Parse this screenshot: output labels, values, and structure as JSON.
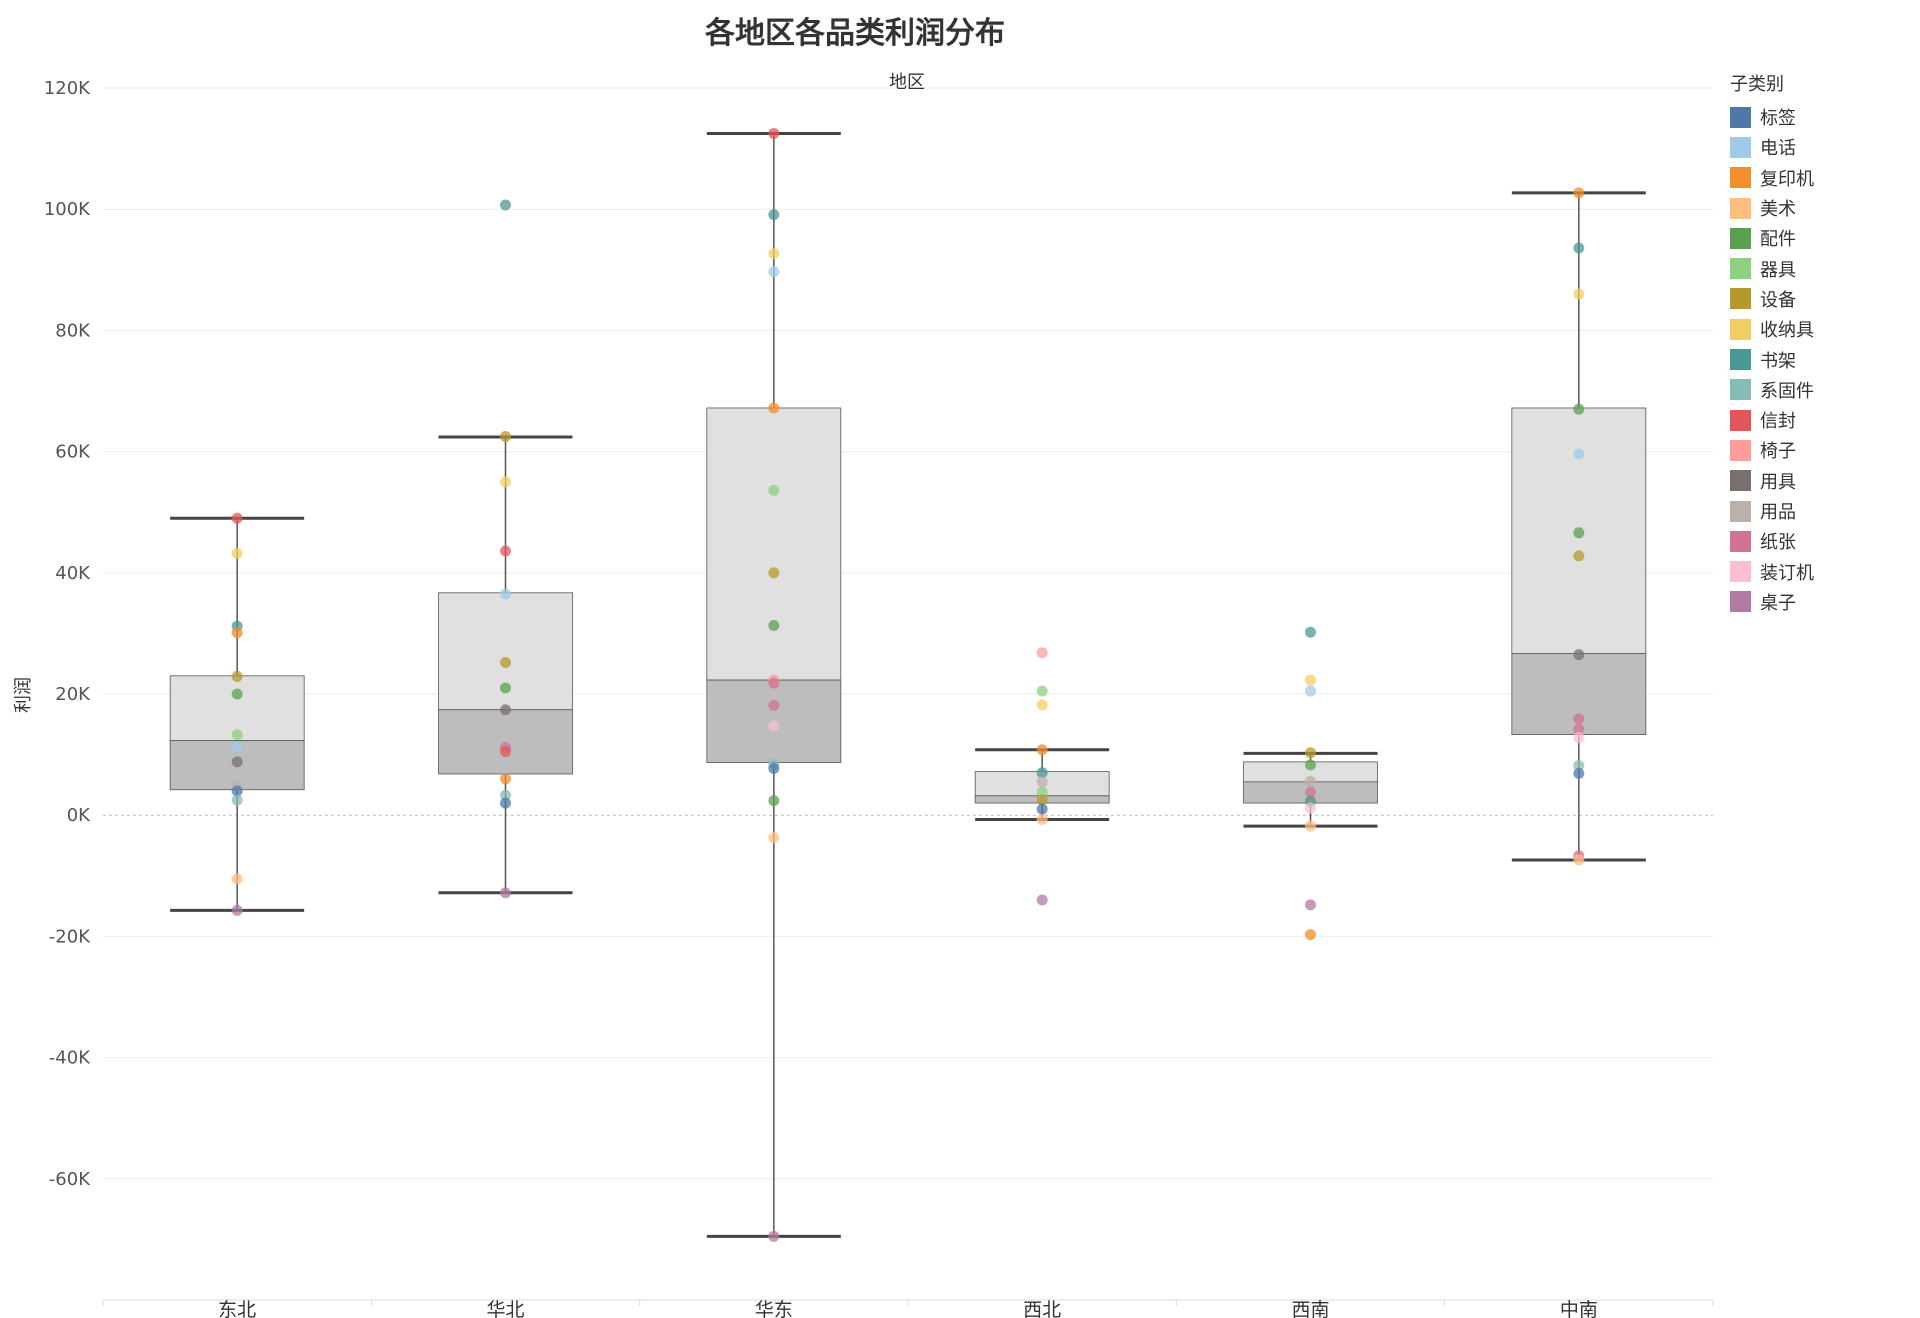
{
  "chart_data": {
    "type": "boxplot",
    "title": "各地区各品类利润分布",
    "column_header": "地区",
    "ylabel": "利润",
    "ylim": [
      -80000,
      120000
    ],
    "y_ticks": [
      120000,
      100000,
      80000,
      60000,
      40000,
      20000,
      0,
      -20000,
      -40000,
      -60000
    ],
    "y_tick_labels": [
      "120K",
      "100K",
      "80K",
      "60K",
      "40K",
      "20K",
      "0K",
      "-20K",
      "-40K",
      "-60K"
    ],
    "categories": [
      "东北",
      "华北",
      "华东",
      "西北",
      "西南",
      "中南"
    ],
    "legend_title": "子类别",
    "subcategories": [
      {
        "name": "标签",
        "color": "#4e79a7"
      },
      {
        "name": "电话",
        "color": "#a0cbe8"
      },
      {
        "name": "复印机",
        "color": "#f28e2b"
      },
      {
        "name": "美术",
        "color": "#ffbe7d"
      },
      {
        "name": "配件",
        "color": "#59a14f"
      },
      {
        "name": "器具",
        "color": "#8cd17d"
      },
      {
        "name": "设备",
        "color": "#b6992d"
      },
      {
        "name": "收纳具",
        "color": "#f1ce63"
      },
      {
        "name": "书架",
        "color": "#499894"
      },
      {
        "name": "系固件",
        "color": "#86bcb6"
      },
      {
        "name": "信封",
        "color": "#e15759"
      },
      {
        "name": "椅子",
        "color": "#ff9d9a"
      },
      {
        "name": "用具",
        "color": "#79706e"
      },
      {
        "name": "用品",
        "color": "#bab0ac"
      },
      {
        "name": "纸张",
        "color": "#d37295"
      },
      {
        "name": "装订机",
        "color": "#fabfd2"
      },
      {
        "name": "桌子",
        "color": "#b07aa1"
      }
    ],
    "boxes": [
      {
        "region": "东北",
        "whisker_low": -15700,
        "q1": 4200,
        "median": 12300,
        "q3": 23000,
        "whisker_high": 49000
      },
      {
        "region": "华北",
        "whisker_low": -12800,
        "q1": 6800,
        "median": 17400,
        "q3": 36700,
        "whisker_high": 62400
      },
      {
        "region": "华东",
        "whisker_low": -69500,
        "q1": 8700,
        "median": 22300,
        "q3": 67200,
        "whisker_high": 112500
      },
      {
        "region": "西北",
        "whisker_low": -700,
        "q1": 2000,
        "median": 3200,
        "q3": 7200,
        "whisker_high": 10800
      },
      {
        "region": "西南",
        "whisker_low": -1800,
        "q1": 2000,
        "median": 5500,
        "q3": 8800,
        "whisker_high": 10200
      },
      {
        "region": "中南",
        "whisker_low": -7400,
        "q1": 13300,
        "median": 26700,
        "q3": 67200,
        "whisker_high": 102700
      }
    ],
    "points": {
      "东北": [
        {
          "sub": "信封",
          "y": 49000
        },
        {
          "sub": "收纳具",
          "y": 43200
        },
        {
          "sub": "书架",
          "y": 31200
        },
        {
          "sub": "复印机",
          "y": 30100
        },
        {
          "sub": "设备",
          "y": 22900
        },
        {
          "sub": "配件",
          "y": 20000
        },
        {
          "sub": "器具",
          "y": 13300
        },
        {
          "sub": "电话",
          "y": 11200
        },
        {
          "sub": "用具",
          "y": 8800
        },
        {
          "sub": "用品",
          "y": 4900
        },
        {
          "sub": "标签",
          "y": 4000
        },
        {
          "sub": "系固件",
          "y": 2500
        },
        {
          "sub": "美术",
          "y": -10500
        },
        {
          "sub": "桌子",
          "y": -15700
        }
      ],
      "华北": [
        {
          "sub": "书架",
          "y": 100700
        },
        {
          "sub": "设备",
          "y": 62500
        },
        {
          "sub": "收纳具",
          "y": 55000
        },
        {
          "sub": "信封",
          "y": 43600
        },
        {
          "sub": "电话",
          "y": 36500
        },
        {
          "sub": "设备",
          "y": 25200
        },
        {
          "sub": "配件",
          "y": 21000
        },
        {
          "sub": "用具",
          "y": 17400
        },
        {
          "sub": "纸张",
          "y": 11200
        },
        {
          "sub": "信封",
          "y": 10500
        },
        {
          "sub": "复印机",
          "y": 6000
        },
        {
          "sub": "系固件",
          "y": 3300
        },
        {
          "sub": "标签",
          "y": 2000
        },
        {
          "sub": "桌子",
          "y": -12800
        }
      ],
      "华东": [
        {
          "sub": "信封",
          "y": 112500
        },
        {
          "sub": "书架",
          "y": 99100
        },
        {
          "sub": "收纳具",
          "y": 92700
        },
        {
          "sub": "电话",
          "y": 89700
        },
        {
          "sub": "复印机",
          "y": 67200
        },
        {
          "sub": "器具",
          "y": 53600
        },
        {
          "sub": "设备",
          "y": 40000
        },
        {
          "sub": "配件",
          "y": 31300
        },
        {
          "sub": "椅子",
          "y": 22300
        },
        {
          "sub": "纸张",
          "y": 21800
        },
        {
          "sub": "纸张",
          "y": 18100
        },
        {
          "sub": "装订机",
          "y": 14700
        },
        {
          "sub": "系固件",
          "y": 8400
        },
        {
          "sub": "标签",
          "y": 7700
        },
        {
          "sub": "配件",
          "y": 2400
        },
        {
          "sub": "美术",
          "y": -3700
        },
        {
          "sub": "桌子",
          "y": -69500
        }
      ],
      "西北": [
        {
          "sub": "椅子",
          "y": 26800
        },
        {
          "sub": "器具",
          "y": 20500
        },
        {
          "sub": "收纳具",
          "y": 18200
        },
        {
          "sub": "复印机",
          "y": 10800
        },
        {
          "sub": "书架",
          "y": 7000
        },
        {
          "sub": "用品",
          "y": 5500
        },
        {
          "sub": "器具",
          "y": 3800
        },
        {
          "sub": "设备",
          "y": 2500
        },
        {
          "sub": "标签",
          "y": 1000
        },
        {
          "sub": "美术",
          "y": -700
        },
        {
          "sub": "桌子",
          "y": -14000
        }
      ],
      "西南": [
        {
          "sub": "书架",
          "y": 30200
        },
        {
          "sub": "收纳具",
          "y": 22300
        },
        {
          "sub": "电话",
          "y": 20500
        },
        {
          "sub": "设备",
          "y": 10300
        },
        {
          "sub": "配件",
          "y": 8300
        },
        {
          "sub": "用品",
          "y": 5600
        },
        {
          "sub": "纸张",
          "y": 3800
        },
        {
          "sub": "书架",
          "y": 2300
        },
        {
          "sub": "装订机",
          "y": 1200
        },
        {
          "sub": "美术",
          "y": -1800
        },
        {
          "sub": "桌子",
          "y": -14800
        },
        {
          "sub": "复印机",
          "y": -19700
        }
      ],
      "中南": [
        {
          "sub": "复印机",
          "y": 102700
        },
        {
          "sub": "书架",
          "y": 93600
        },
        {
          "sub": "收纳具",
          "y": 86000
        },
        {
          "sub": "配件",
          "y": 67000
        },
        {
          "sub": "电话",
          "y": 59600
        },
        {
          "sub": "配件",
          "y": 46600
        },
        {
          "sub": "设备",
          "y": 42800
        },
        {
          "sub": "用具",
          "y": 26500
        },
        {
          "sub": "纸张",
          "y": 15900
        },
        {
          "sub": "纸张",
          "y": 14200
        },
        {
          "sub": "装订机",
          "y": 12800
        },
        {
          "sub": "系固件",
          "y": 8200
        },
        {
          "sub": "标签",
          "y": 6900
        },
        {
          "sub": "纸张",
          "y": -6700
        },
        {
          "sub": "美术",
          "y": -7400
        }
      ]
    }
  }
}
